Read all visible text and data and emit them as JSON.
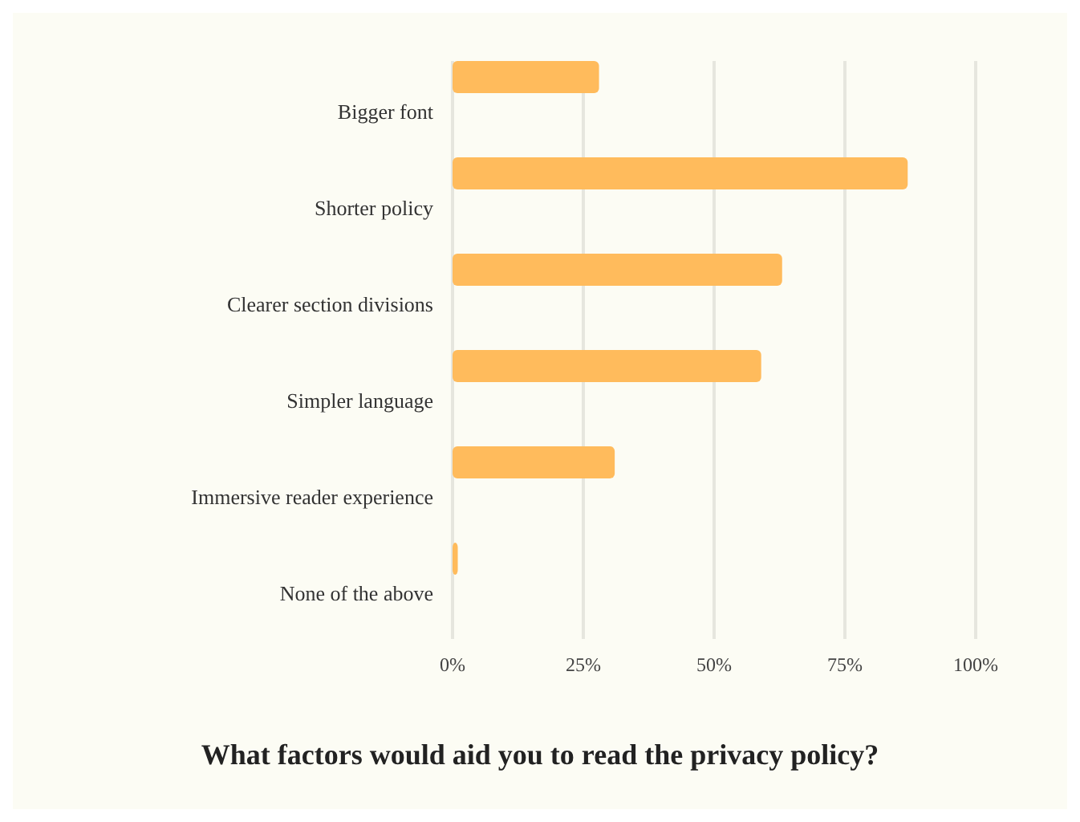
{
  "chart_data": {
    "type": "bar",
    "orientation": "horizontal",
    "title": "What factors would aid you to read the privacy policy?",
    "categories": [
      "Bigger font",
      "Shorter policy",
      "Clearer section divisions",
      "Simpler language",
      "Immersive reader experience",
      "None of the above"
    ],
    "values": [
      28,
      87,
      63,
      59,
      31,
      1
    ],
    "color": "#ffbb5c",
    "xlim": [
      0,
      100
    ],
    "xticks": [
      {
        "value": 0,
        "label": "0%"
      },
      {
        "value": 25,
        "label": "25%"
      },
      {
        "value": 50,
        "label": "50%"
      },
      {
        "value": 75,
        "label": "75%"
      },
      {
        "value": 100,
        "label": "100%"
      }
    ],
    "grid": "x"
  }
}
